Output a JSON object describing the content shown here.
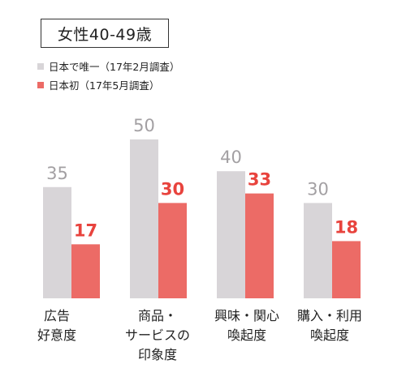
{
  "colors": {
    "series_a": "#d8d5d8",
    "series_b": "#ec6b66",
    "label_a": "#a3a0a3",
    "label_b": "#e8433d"
  },
  "chart_data": {
    "type": "bar",
    "title": "女性40-49歳",
    "categories": [
      "広告\n好意度",
      "商品・\nサービスの\n印象度",
      "興味・関心\n喚起度",
      "購入・利用\n喚起度"
    ],
    "series": [
      {
        "name": "日本で唯一（17年2月調査）",
        "values": [
          35,
          50,
          40,
          30
        ]
      },
      {
        "name": "日本初（17年5月調査）",
        "values": [
          17,
          30,
          33,
          18
        ]
      }
    ],
    "ylim": [
      0,
      50
    ],
    "grid": false,
    "legend": "top-left"
  }
}
